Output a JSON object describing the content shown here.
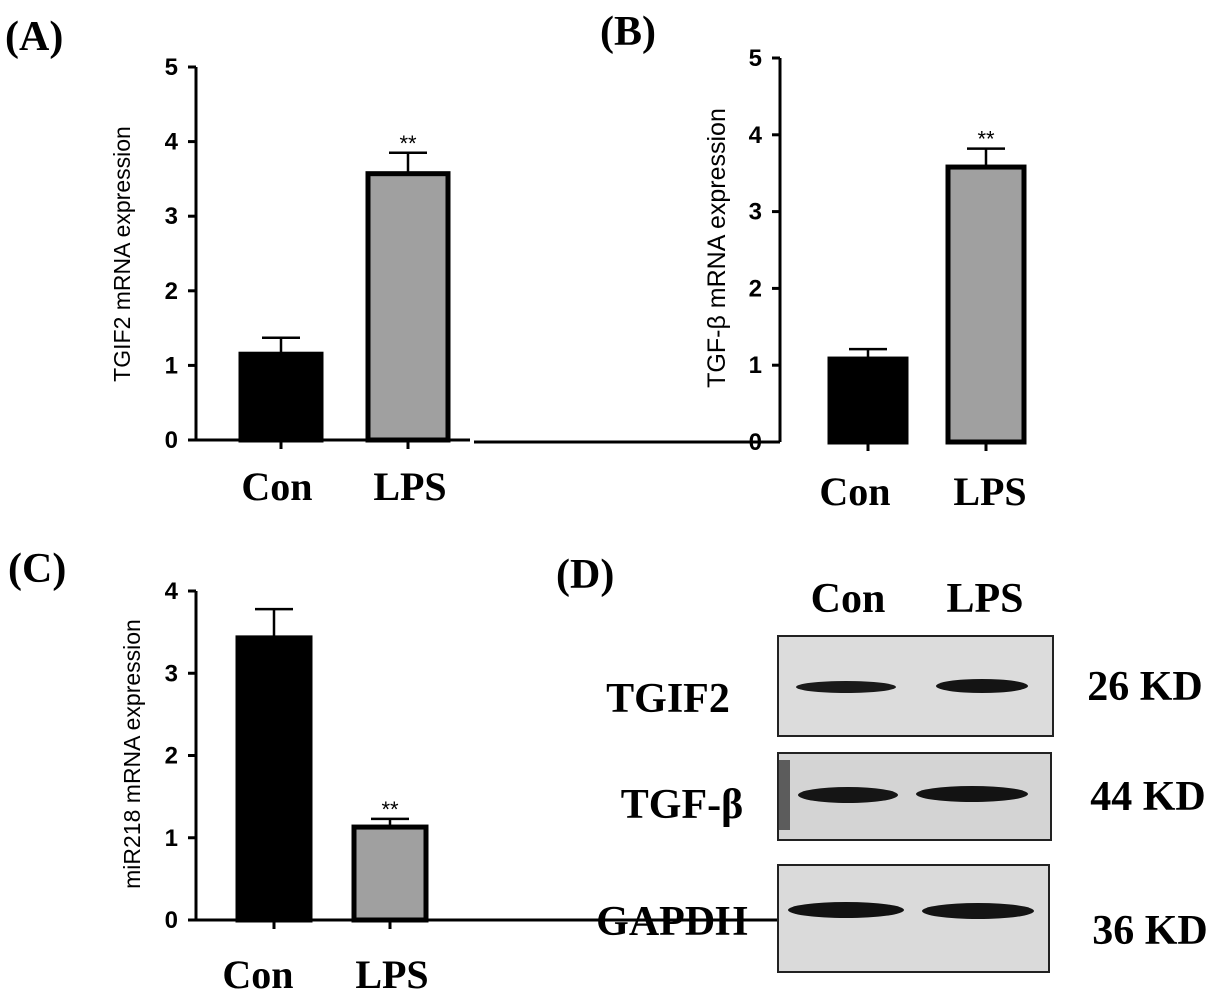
{
  "figure": {
    "panels": {
      "A": "(A)",
      "B": "(B)",
      "C": "(C)",
      "D": "(D)"
    }
  },
  "chart_data": [
    {
      "type": "bar",
      "panel": "(A)",
      "categories": [
        "Con",
        "LPS"
      ],
      "values": [
        1.15,
        3.57
      ],
      "errors": [
        0.22,
        0.28
      ],
      "significance": [
        "",
        "**"
      ],
      "ylabel": "TGIF2 mRNA expression",
      "ylim": [
        0,
        5
      ],
      "yticks": [
        "0",
        "1",
        "2",
        "3",
        "4",
        "5"
      ],
      "colors": [
        "#000000",
        "#a0a0a0"
      ]
    },
    {
      "type": "bar",
      "panel": "(B)",
      "categories": [
        "Con",
        "LPS"
      ],
      "values": [
        1.08,
        3.58
      ],
      "errors": [
        0.13,
        0.24
      ],
      "significance": [
        "",
        "**"
      ],
      "ylabel": "TGF-β mRNA expression",
      "ylim": [
        0,
        5
      ],
      "yticks": [
        "0",
        "1",
        "2",
        "3",
        "4",
        "5"
      ],
      "colors": [
        "#000000",
        "#a0a0a0"
      ]
    },
    {
      "type": "bar",
      "panel": "(C)",
      "categories": [
        "Con",
        "LPS"
      ],
      "values": [
        3.43,
        1.13
      ],
      "errors": [
        0.35,
        0.1
      ],
      "significance": [
        "",
        "**"
      ],
      "ylabel": "miR218 mRNA expression",
      "ylim": [
        0,
        4
      ],
      "yticks": [
        "0",
        "1",
        "2",
        "3",
        "4"
      ],
      "colors": [
        "#000000",
        "#a0a0a0"
      ]
    }
  ],
  "western_blot": {
    "panel": "(D)",
    "lanes": [
      "Con",
      "LPS"
    ],
    "rows": [
      {
        "protein": "TGIF2",
        "size": "26 KD"
      },
      {
        "protein": "TGF-β",
        "size": "44 KD"
      },
      {
        "protein": "GAPDH",
        "size": "36 KD"
      }
    ]
  }
}
